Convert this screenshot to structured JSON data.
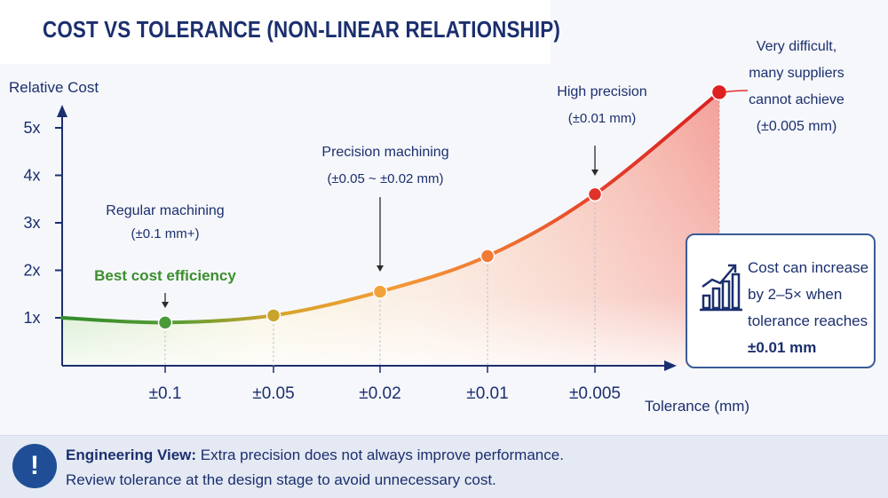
{
  "title": "COST VS TOLERANCE (NON-LINEAR RELATIONSHIP)",
  "chart_data": {
    "type": "line",
    "ylabel": "Relative Cost",
    "xlabel": "Tolerance (mm)",
    "y_ticks": [
      "1x",
      "2x",
      "3x",
      "4x",
      "5x"
    ],
    "ylim": [
      0.5,
      5.5
    ],
    "categories": [
      "±0.1",
      "±0.05",
      "±0.02",
      "±0.01",
      "±0.005"
    ],
    "points": [
      {
        "label": "±0.1",
        "y": 0.9,
        "color": "#4a9a3a"
      },
      {
        "label": "±0.05",
        "y": 1.05,
        "color": "#c9a32c"
      },
      {
        "label": "±0.02",
        "y": 1.55,
        "color": "#f2a23a"
      },
      {
        "label": "±0.01",
        "y": 2.3,
        "color": "#f07a35"
      },
      {
        "label": "±0.005",
        "y": 3.6,
        "color": "#e0322a"
      }
    ],
    "end_point": {
      "label": "±0.005 mm",
      "y": 5.75,
      "color": "#dd2020"
    },
    "grid": false,
    "annotations": [
      {
        "id": "regular",
        "lines": [
          "Regular machining",
          "(±0.1 mm+)"
        ]
      },
      {
        "id": "best",
        "lines": [
          "Best cost efficiency"
        ]
      },
      {
        "id": "precision",
        "lines": [
          "Precision machining",
          "(±0.05 ~ ±0.02 mm)"
        ]
      },
      {
        "id": "high",
        "lines": [
          "High precision",
          "(±0.01 mm)"
        ]
      },
      {
        "id": "difficult",
        "lines": [
          "Very difficult,",
          "many suppliers",
          "cannot achieve",
          "(±0.005 mm)"
        ]
      }
    ],
    "colors": {
      "axis": "#1b2f6e",
      "good": "#3b8f2e",
      "bad": "#d81f1f"
    }
  },
  "callout": {
    "lines": [
      "Cost can increase",
      "by 2–5× when",
      "tolerance reaches"
    ],
    "emphasis": "±0.01 mm",
    "icon": "bar-chart-trend-icon"
  },
  "banner": {
    "icon": "!",
    "lead": "Engineering View:",
    "line1": " Extra precision does not always improve performance.",
    "line2": "Review tolerance at the design stage to avoid unnecessary cost."
  }
}
